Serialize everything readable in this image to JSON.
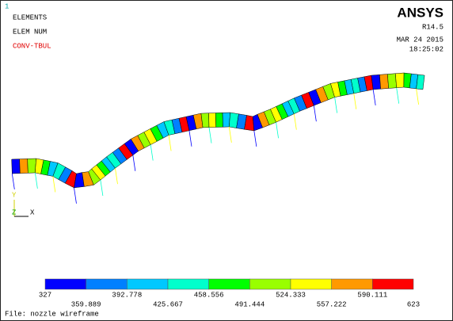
{
  "window_number": "1",
  "labels": [
    "ELEMENTS",
    "ELEM NUM",
    "CONV-TBUL"
  ],
  "brand": {
    "name": "ANSYS",
    "release": "R14.5",
    "date": "MAR 24 2015",
    "time": "18:25:02"
  },
  "triad": {
    "y": "Y",
    "z": "Z",
    "x": "X"
  },
  "legend": {
    "colors": [
      "#0000ff",
      "#0080ff",
      "#00c8ff",
      "#00ffcc",
      "#00ff00",
      "#99ff00",
      "#ffff00",
      "#ff9900",
      "#ff0000"
    ],
    "values": [
      327,
      359.889,
      392.778,
      425.667,
      458.556,
      491.444,
      524.333,
      557.222,
      590.111,
      623
    ]
  },
  "footer": "File: nozzle wireframe"
}
